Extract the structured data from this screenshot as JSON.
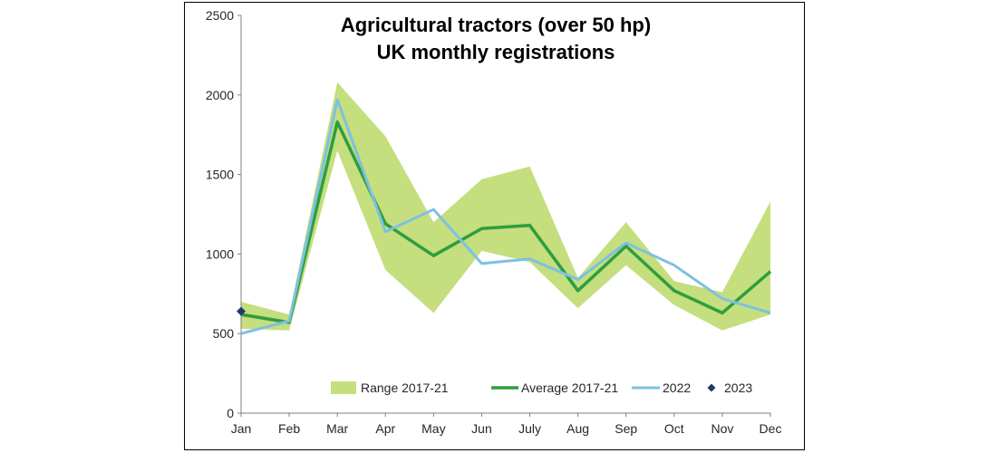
{
  "chart_data": {
    "type": "line",
    "title": [
      "Agricultural tractors (over 50 hp)",
      "UK monthly registrations"
    ],
    "xlabel": "",
    "ylabel": "",
    "ylim": [
      0,
      2500
    ],
    "yticks": [
      0,
      500,
      1000,
      1500,
      2000,
      2500
    ],
    "categories": [
      "Jan",
      "Feb",
      "Mar",
      "Apr",
      "May",
      "Jun",
      "July",
      "Aug",
      "Sep",
      "Oct",
      "Nov",
      "Dec"
    ],
    "grid": false,
    "legend_position": "bottom",
    "range": {
      "name": "Range 2017-21",
      "color": "#c5de7e",
      "low": [
        530,
        520,
        1650,
        900,
        630,
        1020,
        950,
        660,
        930,
        680,
        520,
        620
      ],
      "high": [
        700,
        620,
        2080,
        1740,
        1200,
        1470,
        1550,
        850,
        1200,
        830,
        760,
        1330
      ]
    },
    "series": [
      {
        "name": "Average 2017-21",
        "color": "#2e9e3e",
        "values": [
          620,
          570,
          1830,
          1190,
          990,
          1160,
          1180,
          770,
          1050,
          770,
          630,
          890
        ]
      },
      {
        "name": "2022",
        "color": "#7ec0e2",
        "values": [
          500,
          580,
          1970,
          1140,
          1280,
          940,
          970,
          840,
          1070,
          930,
          720,
          630
        ]
      }
    ],
    "points": [
      {
        "name": "2023",
        "color": "#1f3b6b",
        "category": "Jan",
        "value": 640
      }
    ]
  }
}
